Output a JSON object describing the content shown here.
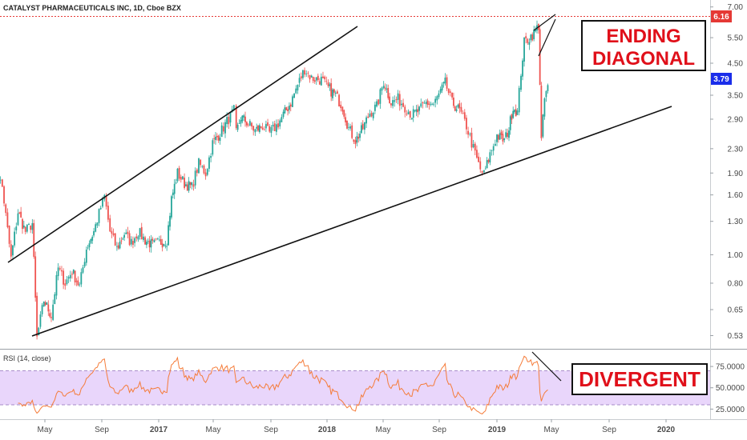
{
  "header": {
    "title": "CATALYST PHARMACEUTICALS INC, 1D, Cboe BZX"
  },
  "chart_data": {
    "type": "candlestick",
    "price_axis": {
      "scale": "log",
      "ticks": [
        "7.00",
        "5.50",
        "4.50",
        "3.50",
        "2.90",
        "2.30",
        "1.90",
        "1.60",
        "1.30",
        "1.00",
        "0.80",
        "0.65",
        "0.53"
      ],
      "range": [
        0.49,
        7.3
      ]
    },
    "time_axis": {
      "labels": [
        "May",
        "Sep",
        "2017",
        "May",
        "Sep",
        "2018",
        "May",
        "Sep",
        "2019",
        "May",
        "Sep",
        "2020"
      ]
    },
    "price_tags": {
      "resistance": "6.16",
      "last": "3.79"
    },
    "price_path": [
      [
        "2016-02-01",
        2.05
      ],
      [
        "2016-02-20",
        1.7
      ],
      [
        "2016-03-10",
        0.97
      ],
      [
        "2016-03-25",
        1.4
      ],
      [
        "2016-04-10",
        1.2
      ],
      [
        "2016-04-25",
        1.28
      ],
      [
        "2016-05-05",
        0.52
      ],
      [
        "2016-05-20",
        0.7
      ],
      [
        "2016-06-05",
        0.62
      ],
      [
        "2016-06-20",
        0.9
      ],
      [
        "2016-07-05",
        0.8
      ],
      [
        "2016-07-20",
        0.88
      ],
      [
        "2016-08-05",
        0.78
      ],
      [
        "2016-08-20",
        1.05
      ],
      [
        "2016-09-05",
        1.2
      ],
      [
        "2016-09-20",
        1.45
      ],
      [
        "2016-09-28",
        1.58
      ],
      [
        "2016-10-10",
        1.2
      ],
      [
        "2016-10-25",
        1.05
      ],
      [
        "2016-11-10",
        1.18
      ],
      [
        "2016-11-25",
        1.1
      ],
      [
        "2016-12-10",
        1.2
      ],
      [
        "2016-12-25",
        1.12
      ],
      [
        "2017-01-10",
        1.08
      ],
      [
        "2017-01-25",
        1.1
      ],
      [
        "2017-02-10",
        1.12
      ],
      [
        "2017-02-20",
        1.55
      ],
      [
        "2017-03-05",
        1.9
      ],
      [
        "2017-03-20",
        1.75
      ],
      [
        "2017-04-05",
        1.7
      ],
      [
        "2017-04-20",
        2.05
      ],
      [
        "2017-05-05",
        1.9
      ],
      [
        "2017-05-20",
        2.4
      ],
      [
        "2017-06-05",
        2.6
      ],
      [
        "2017-06-20",
        2.85
      ],
      [
        "2017-07-05",
        3.1
      ],
      [
        "2017-07-10",
        2.6
      ],
      [
        "2017-07-20",
        2.95
      ],
      [
        "2017-08-05",
        2.8
      ],
      [
        "2017-08-20",
        2.65
      ],
      [
        "2017-09-05",
        2.75
      ],
      [
        "2017-09-20",
        2.6
      ],
      [
        "2017-10-05",
        2.75
      ],
      [
        "2017-10-20",
        3.0
      ],
      [
        "2017-11-05",
        3.3
      ],
      [
        "2017-11-20",
        3.8
      ],
      [
        "2017-12-05",
        4.3
      ],
      [
        "2017-12-20",
        4.0
      ],
      [
        "2018-01-10",
        3.95
      ],
      [
        "2018-01-25",
        3.7
      ],
      [
        "2018-02-10",
        3.5
      ],
      [
        "2018-02-25",
        3.2
      ],
      [
        "2018-03-10",
        2.7
      ],
      [
        "2018-03-25",
        2.45
      ],
      [
        "2018-04-10",
        2.7
      ],
      [
        "2018-04-25",
        3.05
      ],
      [
        "2018-05-10",
        3.2
      ],
      [
        "2018-05-25",
        3.9
      ],
      [
        "2018-06-10",
        3.3
      ],
      [
        "2018-06-25",
        3.4
      ],
      [
        "2018-07-10",
        3.2
      ],
      [
        "2018-07-25",
        3.0
      ],
      [
        "2018-08-10",
        3.1
      ],
      [
        "2018-08-25",
        3.3
      ],
      [
        "2018-09-10",
        3.25
      ],
      [
        "2018-09-25",
        3.6
      ],
      [
        "2018-10-05",
        3.85
      ],
      [
        "2018-10-20",
        3.3
      ],
      [
        "2018-11-05",
        3.1
      ],
      [
        "2018-11-20",
        2.75
      ],
      [
        "2018-12-05",
        2.3
      ],
      [
        "2018-12-20",
        1.95
      ],
      [
        "2018-12-28",
        1.88
      ],
      [
        "2019-01-10",
        2.2
      ],
      [
        "2019-01-25",
        2.55
      ],
      [
        "2019-02-10",
        2.45
      ],
      [
        "2019-02-20",
        2.7
      ],
      [
        "2019-03-01",
        3.2
      ],
      [
        "2019-03-10",
        3.05
      ],
      [
        "2019-03-18",
        4.2
      ],
      [
        "2019-03-25",
        5.3
      ],
      [
        "2019-04-05",
        5.5
      ],
      [
        "2019-04-15",
        5.7
      ],
      [
        "2019-04-25",
        6.05
      ],
      [
        "2019-05-01",
        2.45
      ],
      [
        "2019-05-08",
        3.4
      ],
      [
        "2019-05-15",
        3.79
      ]
    ],
    "rsi": {
      "title": "RSI (14, close)",
      "ticks": [
        "75.0000",
        "50.0000",
        "25.0000"
      ],
      "range": [
        15,
        92
      ],
      "band": [
        30,
        70
      ]
    },
    "annotations": [
      {
        "text": [
          "ENDING",
          "DIAGONAL"
        ]
      },
      {
        "text": [
          "DIVERGENT"
        ]
      }
    ],
    "colors": {
      "up": "#26a69a",
      "down": "#ef5350",
      "rsi_line": "#f57c3a",
      "rsi_band": "#e9d6fb",
      "annotation": "#e0101a",
      "resistance": "#e53935",
      "last_tag": "#1a2dea"
    }
  }
}
